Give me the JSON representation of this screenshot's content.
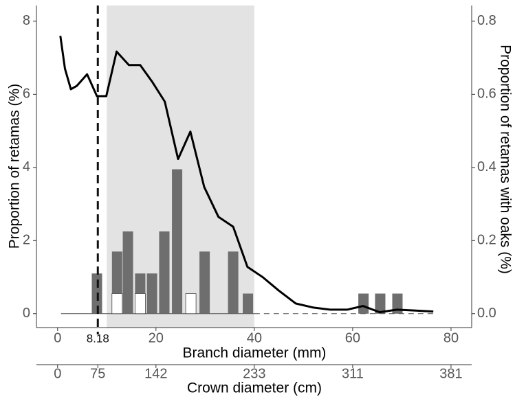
{
  "chart_data": {
    "type": "combo",
    "xlabel": "Branch diameter (mm)",
    "ylabel": "Proportion of retamas (%)",
    "y2label": "Proportion of retamas with oaks (%)",
    "x2label": "Crown diameter (cm)",
    "xlim": [
      -4.3,
      84.2
    ],
    "xticks": [
      0,
      20,
      40,
      60,
      80
    ],
    "ylim": [
      -0.38,
      8.43
    ],
    "yticks": [
      0,
      2,
      4,
      6,
      8
    ],
    "y2lim": [
      -0.038,
      0.843
    ],
    "y2ticks": [
      {
        "value": 0,
        "label": "0.0"
      },
      0.2,
      0.4,
      0.6,
      0.8
    ],
    "x2ticks": [
      0,
      75,
      142,
      233,
      311,
      381
    ],
    "x2ticks_at": [
      0,
      8.18,
      20,
      40,
      60,
      80
    ],
    "shaded_region": [
      10,
      40
    ],
    "shade_color": "#e3e3e3",
    "threshold": 8.18,
    "series": [
      {
        "type": "bar",
        "color": "#6e6e6e",
        "x": [
          8.0,
          12.1,
          14.3,
          16.8,
          19.2,
          21.7,
          24.3,
          29.9,
          35.7,
          38.7,
          62.2,
          65.6,
          69.1
        ],
        "values": [
          1.1,
          1.7,
          2.25,
          1.1,
          1.1,
          2.25,
          3.95,
          1.7,
          1.7,
          0.55,
          0.55,
          0.55,
          0.55
        ]
      },
      {
        "type": "bar",
        "color": "#ffffff",
        "x": [
          12.1,
          16.8,
          27.1
        ],
        "values": [
          0.55,
          0.55,
          0.55
        ]
      },
      {
        "type": "line",
        "axis": "y2",
        "color": "#000000",
        "x": [
          0.56,
          1.5,
          2.7,
          3.9,
          6.0,
          8.0,
          9.9,
          12.0,
          14.5,
          16.8,
          19.3,
          21.8,
          24.5,
          27.0,
          29.8,
          32.7,
          35.7,
          38.6,
          41.7,
          44.9,
          48.4,
          51.9,
          55.4,
          58.9,
          62.1,
          65.5,
          69.0,
          72.2,
          76.4
        ],
        "values": [
          0.76,
          0.67,
          0.614,
          0.623,
          0.655,
          0.595,
          0.595,
          0.717,
          0.68,
          0.68,
          0.633,
          0.58,
          0.423,
          0.498,
          0.347,
          0.265,
          0.238,
          0.128,
          0.1,
          0.064,
          0.028,
          0.017,
          0.011,
          0.011,
          0.021,
          0.004,
          0.011,
          0.009,
          0.006
        ]
      }
    ]
  }
}
